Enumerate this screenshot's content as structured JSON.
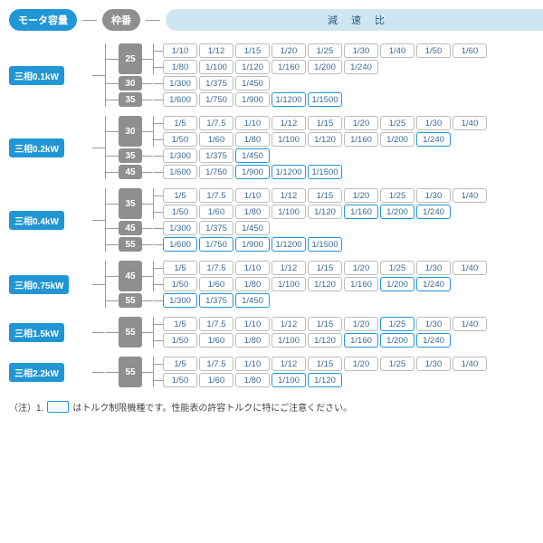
{
  "colors": {
    "blue": "#2196d4",
    "gray": "#8f8f8f",
    "light": "#cfe6f2",
    "border": "#bbbbbb",
    "torque_border": "#2196d4",
    "text_blue": "#3a6a9a",
    "line": "#999999"
  },
  "header": {
    "motor": "モータ容量",
    "frame": "枠番",
    "ratio": "減 速 比"
  },
  "groups": [
    {
      "motor": "三相0.1kW",
      "frames": [
        {
          "frame": "25",
          "lines": [
            [
              {
                "t": "1/10"
              },
              {
                "t": "1/12"
              },
              {
                "t": "1/15"
              },
              {
                "t": "1/20"
              },
              {
                "t": "1/25"
              },
              {
                "t": "1/30"
              },
              {
                "t": "1/40"
              },
              {
                "t": "1/50"
              },
              {
                "t": "1/60"
              }
            ],
            [
              {
                "t": "1/80"
              },
              {
                "t": "1/100"
              },
              {
                "t": "1/120"
              },
              {
                "t": "1/160"
              },
              {
                "t": "1/200"
              },
              {
                "t": "1/240"
              }
            ]
          ]
        },
        {
          "frame": "30",
          "lines": [
            [
              {
                "t": "1/300"
              },
              {
                "t": "1/375"
              },
              {
                "t": "1/450"
              }
            ]
          ]
        },
        {
          "frame": "35",
          "lines": [
            [
              {
                "t": "1/600"
              },
              {
                "t": "1/750"
              },
              {
                "t": "1/900"
              },
              {
                "t": "1/1200",
                "q": true
              },
              {
                "t": "1/1500",
                "q": true
              }
            ]
          ]
        }
      ]
    },
    {
      "motor": "三相0.2kW",
      "frames": [
        {
          "frame": "30",
          "lines": [
            [
              {
                "t": "1/5"
              },
              {
                "t": "1/7.5"
              },
              {
                "t": "1/10"
              },
              {
                "t": "1/12"
              },
              {
                "t": "1/15"
              },
              {
                "t": "1/20"
              },
              {
                "t": "1/25"
              },
              {
                "t": "1/30"
              },
              {
                "t": "1/40"
              }
            ],
            [
              {
                "t": "1/50"
              },
              {
                "t": "1/60"
              },
              {
                "t": "1/80"
              },
              {
                "t": "1/100"
              },
              {
                "t": "1/120"
              },
              {
                "t": "1/160"
              },
              {
                "t": "1/200"
              },
              {
                "t": "1/240",
                "q": true
              }
            ]
          ]
        },
        {
          "frame": "35",
          "lines": [
            [
              {
                "t": "1/300"
              },
              {
                "t": "1/375"
              },
              {
                "t": "1/450",
                "q": true
              }
            ]
          ]
        },
        {
          "frame": "45",
          "lines": [
            [
              {
                "t": "1/600"
              },
              {
                "t": "1/750"
              },
              {
                "t": "1/900",
                "q": true
              },
              {
                "t": "1/1200",
                "q": true
              },
              {
                "t": "1/1500",
                "q": true
              }
            ]
          ]
        }
      ]
    },
    {
      "motor": "三相0.4kW",
      "frames": [
        {
          "frame": "35",
          "lines": [
            [
              {
                "t": "1/5"
              },
              {
                "t": "1/7.5"
              },
              {
                "t": "1/10"
              },
              {
                "t": "1/12"
              },
              {
                "t": "1/15"
              },
              {
                "t": "1/20"
              },
              {
                "t": "1/25"
              },
              {
                "t": "1/30"
              },
              {
                "t": "1/40"
              }
            ],
            [
              {
                "t": "1/50"
              },
              {
                "t": "1/60"
              },
              {
                "t": "1/80"
              },
              {
                "t": "1/100"
              },
              {
                "t": "1/120"
              },
              {
                "t": "1/160",
                "q": true
              },
              {
                "t": "1/200",
                "q": true
              },
              {
                "t": "1/240",
                "q": true
              }
            ]
          ]
        },
        {
          "frame": "45",
          "lines": [
            [
              {
                "t": "1/300"
              },
              {
                "t": "1/375"
              },
              {
                "t": "1/450"
              }
            ]
          ]
        },
        {
          "frame": "55",
          "lines": [
            [
              {
                "t": "1/600",
                "q": true
              },
              {
                "t": "1/750",
                "q": true
              },
              {
                "t": "1/900",
                "q": true
              },
              {
                "t": "1/1200",
                "q": true
              },
              {
                "t": "1/1500",
                "q": true
              }
            ]
          ]
        }
      ]
    },
    {
      "motor": "三相0.75kW",
      "frames": [
        {
          "frame": "45",
          "lines": [
            [
              {
                "t": "1/5"
              },
              {
                "t": "1/7.5"
              },
              {
                "t": "1/10"
              },
              {
                "t": "1/12"
              },
              {
                "t": "1/15"
              },
              {
                "t": "1/20"
              },
              {
                "t": "1/25"
              },
              {
                "t": "1/30"
              },
              {
                "t": "1/40"
              }
            ],
            [
              {
                "t": "1/50"
              },
              {
                "t": "1/60"
              },
              {
                "t": "1/80"
              },
              {
                "t": "1/100"
              },
              {
                "t": "1/120"
              },
              {
                "t": "1/160"
              },
              {
                "t": "1/200",
                "q": true
              },
              {
                "t": "1/240",
                "q": true
              }
            ]
          ]
        },
        {
          "frame": "55",
          "lines": [
            [
              {
                "t": "1/300",
                "q": true
              },
              {
                "t": "1/375",
                "q": true
              },
              {
                "t": "1/450",
                "q": true
              }
            ]
          ]
        }
      ]
    },
    {
      "motor": "三相1.5kW",
      "frames": [
        {
          "frame": "55",
          "lines": [
            [
              {
                "t": "1/5"
              },
              {
                "t": "1/7.5"
              },
              {
                "t": "1/10"
              },
              {
                "t": "1/12"
              },
              {
                "t": "1/15"
              },
              {
                "t": "1/20"
              },
              {
                "t": "1/25",
                "q": true
              },
              {
                "t": "1/30"
              },
              {
                "t": "1/40"
              }
            ],
            [
              {
                "t": "1/50"
              },
              {
                "t": "1/60"
              },
              {
                "t": "1/80"
              },
              {
                "t": "1/100"
              },
              {
                "t": "1/120"
              },
              {
                "t": "1/160",
                "q": true
              },
              {
                "t": "1/200",
                "q": true
              },
              {
                "t": "1/240",
                "q": true
              }
            ]
          ]
        }
      ]
    },
    {
      "motor": "三相2.2kW",
      "frames": [
        {
          "frame": "55",
          "lines": [
            [
              {
                "t": "1/5"
              },
              {
                "t": "1/7.5"
              },
              {
                "t": "1/10"
              },
              {
                "t": "1/12"
              },
              {
                "t": "1/15"
              },
              {
                "t": "1/20"
              },
              {
                "t": "1/25"
              },
              {
                "t": "1/30"
              },
              {
                "t": "1/40"
              }
            ],
            [
              {
                "t": "1/50"
              },
              {
                "t": "1/60"
              },
              {
                "t": "1/80"
              },
              {
                "t": "1/100",
                "q": true
              },
              {
                "t": "1/120",
                "q": true
              }
            ]
          ]
        }
      ]
    }
  ],
  "note": {
    "prefix": "（注）1.",
    "text": "はトルク制限機種です。性能表の許容トルクに特にご注意ください。"
  }
}
